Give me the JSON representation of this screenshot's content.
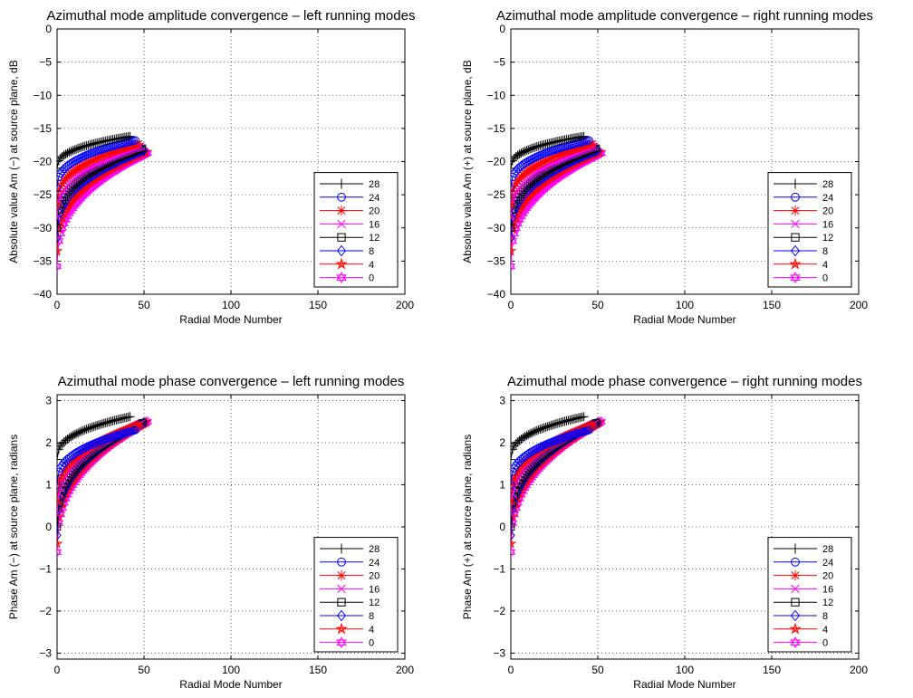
{
  "chart_data": [
    {
      "type": "scatter",
      "title": "Azimuthal mode amplitude convergence – left running modes",
      "xlabel": "Radial Mode Number",
      "ylabel": "Absolute value Am (−) at source plane, dB",
      "xlim": [
        0,
        200
      ],
      "ylim": [
        -40,
        0
      ],
      "xticks": [
        0,
        50,
        100,
        150,
        200
      ],
      "yticks": [
        0,
        -5,
        -10,
        -15,
        -20,
        -25,
        -30,
        -35,
        -40
      ],
      "grid": true,
      "legend": "bottom-right",
      "quantity": "amplitude",
      "series": [
        {
          "name": "28",
          "color": "#000000",
          "marker": "plus",
          "n_max": 42,
          "start": -21.0,
          "end": -16.2
        },
        {
          "name": "24",
          "color": "#0000ff",
          "marker": "circle",
          "n_max": 45,
          "start": -24.0,
          "end": -16.8
        },
        {
          "name": "20",
          "color": "#ff0000",
          "marker": "star",
          "n_max": 47,
          "start": -26.5,
          "end": -17.3
        },
        {
          "name": "16",
          "color": "#ff00ff",
          "marker": "x",
          "n_max": 48,
          "start": -28.5,
          "end": -17.7
        },
        {
          "name": "12",
          "color": "#000000",
          "marker": "square",
          "n_max": 49,
          "start": -30.0,
          "end": -18.0
        },
        {
          "name": "8",
          "color": "#0000ff",
          "marker": "diamond",
          "n_max": 50,
          "start": -31.5,
          "end": -18.3
        },
        {
          "name": "4",
          "color": "#ff0000",
          "marker": "pentagram",
          "n_max": 51,
          "start": -33.5,
          "end": -18.5
        },
        {
          "name": "0",
          "color": "#ff00ff",
          "marker": "hexagram",
          "n_max": 52,
          "start": -35.8,
          "end": -18.7
        }
      ]
    },
    {
      "type": "scatter",
      "title": "Azimuthal mode amplitude convergence – right running modes",
      "xlabel": "Radial Mode Number",
      "ylabel": "Absolute value Am (+) at source plane, dB",
      "xlim": [
        0,
        200
      ],
      "ylim": [
        -40,
        0
      ],
      "xticks": [
        0,
        50,
        100,
        150,
        200
      ],
      "yticks": [
        0,
        -5,
        -10,
        -15,
        -20,
        -25,
        -30,
        -35,
        -40
      ],
      "grid": true,
      "legend": "bottom-right",
      "quantity": "amplitude",
      "series": [
        {
          "name": "28",
          "color": "#000000",
          "marker": "plus",
          "n_max": 42,
          "start": -21.0,
          "end": -16.2
        },
        {
          "name": "24",
          "color": "#0000ff",
          "marker": "circle",
          "n_max": 45,
          "start": -24.0,
          "end": -16.8
        },
        {
          "name": "20",
          "color": "#ff0000",
          "marker": "star",
          "n_max": 47,
          "start": -26.5,
          "end": -17.3
        },
        {
          "name": "16",
          "color": "#ff00ff",
          "marker": "x",
          "n_max": 48,
          "start": -28.5,
          "end": -17.7
        },
        {
          "name": "12",
          "color": "#000000",
          "marker": "square",
          "n_max": 49,
          "start": -30.0,
          "end": -18.0
        },
        {
          "name": "8",
          "color": "#0000ff",
          "marker": "diamond",
          "n_max": 50,
          "start": -31.5,
          "end": -18.3
        },
        {
          "name": "4",
          "color": "#ff0000",
          "marker": "pentagram",
          "n_max": 51,
          "start": -33.5,
          "end": -18.5
        },
        {
          "name": "0",
          "color": "#ff00ff",
          "marker": "hexagram",
          "n_max": 52,
          "start": -35.8,
          "end": -18.7
        }
      ]
    },
    {
      "type": "scatter",
      "title": "Azimuthal mode phase convergence – left running modes",
      "xlabel": "Radial Mode Number",
      "ylabel": "Phase Am (−) at source plane, radians",
      "xlim": [
        0,
        200
      ],
      "ylim": [
        -3.1416,
        3.1416
      ],
      "xticks": [
        0,
        50,
        100,
        150,
        200
      ],
      "yticks": [
        3,
        2,
        1,
        0,
        -1,
        -2,
        -3
      ],
      "grid": true,
      "legend": "bottom-right",
      "quantity": "phase",
      "series": [
        {
          "name": "28",
          "color": "#000000",
          "marker": "plus",
          "n_max": 42,
          "start": 1.6,
          "end": 2.62
        },
        {
          "name": "24",
          "color": "#0000ff",
          "marker": "circle",
          "n_max": 45,
          "start": 1.0,
          "end": 2.3
        },
        {
          "name": "20",
          "color": "#ff0000",
          "marker": "star",
          "n_max": 47,
          "start": 0.6,
          "end": 2.42
        },
        {
          "name": "16",
          "color": "#ff00ff",
          "marker": "x",
          "n_max": 48,
          "start": 0.3,
          "end": 2.45
        },
        {
          "name": "12",
          "color": "#000000",
          "marker": "square",
          "n_max": 49,
          "start": 0.0,
          "end": 2.47
        },
        {
          "name": "8",
          "color": "#0000ff",
          "marker": "diamond",
          "n_max": 50,
          "start": -0.2,
          "end": 2.48
        },
        {
          "name": "4",
          "color": "#ff0000",
          "marker": "pentagram",
          "n_max": 51,
          "start": -0.4,
          "end": 2.49
        },
        {
          "name": "0",
          "color": "#ff00ff",
          "marker": "hexagram",
          "n_max": 52,
          "start": -0.6,
          "end": 2.5
        }
      ]
    },
    {
      "type": "scatter",
      "title": "Azimuthal mode phase convergence – right running modes",
      "xlabel": "Radial Mode Number",
      "ylabel": "Phase Am (+) at source plane, radians",
      "xlim": [
        0,
        200
      ],
      "ylim": [
        -3.1416,
        3.1416
      ],
      "xticks": [
        0,
        50,
        100,
        150,
        200
      ],
      "yticks": [
        3,
        2,
        1,
        0,
        -1,
        -2,
        -3
      ],
      "grid": true,
      "legend": "bottom-right",
      "quantity": "phase",
      "series": [
        {
          "name": "28",
          "color": "#000000",
          "marker": "plus",
          "n_max": 42,
          "start": 1.6,
          "end": 2.62
        },
        {
          "name": "24",
          "color": "#0000ff",
          "marker": "circle",
          "n_max": 45,
          "start": 1.0,
          "end": 2.3
        },
        {
          "name": "20",
          "color": "#ff0000",
          "marker": "star",
          "n_max": 47,
          "start": 0.6,
          "end": 2.42
        },
        {
          "name": "16",
          "color": "#ff00ff",
          "marker": "x",
          "n_max": 48,
          "start": 0.3,
          "end": 2.45
        },
        {
          "name": "12",
          "color": "#000000",
          "marker": "square",
          "n_max": 49,
          "start": 0.0,
          "end": 2.47
        },
        {
          "name": "8",
          "color": "#0000ff",
          "marker": "diamond",
          "n_max": 50,
          "start": -0.2,
          "end": 2.48
        },
        {
          "name": "4",
          "color": "#ff0000",
          "marker": "pentagram",
          "n_max": 51,
          "start": -0.4,
          "end": 2.49
        },
        {
          "name": "0",
          "color": "#ff00ff",
          "marker": "hexagram",
          "n_max": 52,
          "start": -0.6,
          "end": 2.5
        }
      ]
    }
  ]
}
